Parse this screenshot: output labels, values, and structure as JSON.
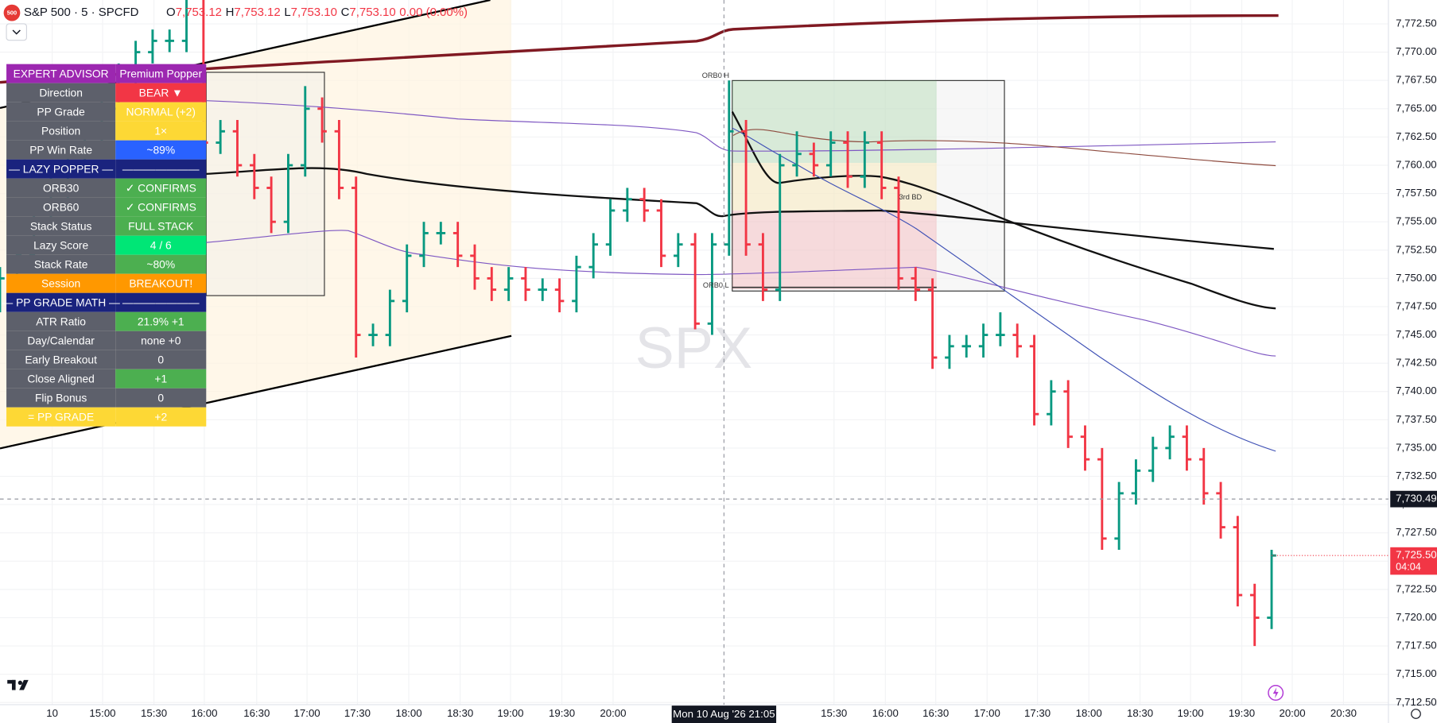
{
  "header": {
    "badge": "500",
    "symbol": "S&P 500 · 5 · SPCFD",
    "ohlc": [
      {
        "key": "O",
        "value": "7,753.12"
      },
      {
        "key": "H",
        "value": "7,753.12"
      },
      {
        "key": "L",
        "value": "7,753.10"
      },
      {
        "key": "C",
        "value": "7,753.10"
      }
    ],
    "change": "0.00 (0.00%)"
  },
  "chart_data": {
    "type": "ohlc",
    "watermark": "SPX",
    "up_color": "#089981",
    "down_color": "#f23645",
    "x": [
      0,
      1,
      2,
      3,
      4,
      5,
      6,
      7,
      8,
      9,
      10,
      11,
      12,
      13,
      14,
      15,
      16,
      17,
      18,
      19,
      20,
      21,
      22,
      23,
      24,
      25,
      26,
      27,
      28,
      29,
      30,
      31,
      32,
      33,
      34,
      35,
      36,
      37,
      38,
      39,
      40,
      41,
      42,
      43,
      44,
      45,
      46,
      47,
      48,
      49,
      50,
      51,
      52,
      53,
      54,
      55,
      56,
      57,
      58,
      59,
      60,
      61,
      62,
      63,
      64,
      65,
      66,
      67,
      68,
      69,
      70,
      71,
      72,
      73,
      74,
      75
    ],
    "open": [
      7748,
      7750,
      7752,
      7755,
      7758,
      7760,
      7762,
      7765,
      7768,
      7770,
      7771,
      7771,
      7775,
      7762,
      7763,
      7760,
      7758,
      7755,
      7760,
      7765,
      7763,
      7758,
      7745,
      7745,
      7748,
      7752,
      7754,
      7754,
      7752,
      7750,
      7749,
      7750,
      7749,
      7749,
      7748,
      7751,
      7753,
      7756,
      7757,
      7756,
      7752,
      7753,
      7746,
      7753,
      7763,
      7753,
      7749,
      7760,
      7761,
      7760,
      7762,
      7759,
      7762,
      7758,
      7750,
      7749,
      7743,
      7744,
      7744,
      7745,
      7745,
      7744,
      7738,
      7740,
      7736,
      7734,
      7727,
      7731,
      7733,
      7735,
      7736,
      7734,
      7731,
      7728,
      7722,
      7720
    ],
    "high": [
      7751,
      7753,
      7756,
      7759,
      7761,
      7763,
      7766,
      7769,
      7771,
      7772,
      7772,
      7777,
      7776,
      7764,
      7764,
      7761,
      7759,
      7761,
      7767,
      7766,
      7764,
      7759,
      7746,
      7749,
      7753,
      7755,
      7755,
      7755,
      7753,
      7751,
      7751,
      7751,
      7750,
      7750,
      7752,
      7754,
      7757,
      7758,
      7758,
      7757,
      7754,
      7754,
      7754,
      7767.5,
      7764,
      7754,
      7761,
      7763,
      7762,
      7763,
      7763,
      7763,
      7763,
      7759,
      7751,
      7750,
      7745,
      7745,
      7746,
      7747,
      7746,
      7745,
      7741,
      7741,
      7737,
      7735,
      7732,
      7734,
      7736,
      7737,
      7737,
      7735,
      7732,
      7729,
      7723,
      7726
    ],
    "low": [
      7747,
      7749,
      7751,
      7754,
      7757,
      7759,
      7761,
      7764,
      7767,
      7769,
      7770,
      7770,
      7761,
      7761,
      7759,
      7757,
      7754,
      7754,
      7759,
      7762,
      7757,
      7743,
      7744,
      7744,
      7747,
      7751,
      7753,
      7751,
      7749,
      7748,
      7748,
      7748,
      7748,
      7747,
      7747,
      7750,
      7752,
      7755,
      7755,
      7751,
      7751,
      7745.5,
      7745,
      7752,
      7752,
      7748,
      7748,
      7759,
      7759,
      7759,
      7758,
      7758,
      7757,
      7749,
      7748,
      7742,
      7742,
      7743,
      7743,
      7744,
      7743,
      7737,
      7737,
      7735,
      7733,
      7726,
      7726,
      7730,
      7732,
      7734,
      7733,
      7730,
      7727,
      7721,
      7717.5,
      7719
    ],
    "close": [
      7750,
      7752,
      7755,
      7758,
      7760,
      7762,
      7765,
      7768,
      7770,
      7771,
      7771,
      7775,
      7762,
      7763,
      7760,
      7758,
      7755,
      7760,
      7765,
      7763,
      7758,
      7745,
      7745,
      7748,
      7752,
      7754,
      7754,
      7752,
      7750,
      7749,
      7750,
      7749,
      7749,
      7748,
      7751,
      7753,
      7756,
      7757,
      7756,
      7752,
      7753,
      7746,
      7753,
      7763,
      7753,
      7749,
      7760,
      7761,
      7760,
      7762,
      7759,
      7762,
      7758,
      7750,
      7749,
      7743,
      7744,
      7744,
      7745,
      7745,
      7744,
      7738,
      7740,
      7736,
      7734,
      7727,
      7731,
      7733,
      7735,
      7736,
      7734,
      7731,
      7728,
      7722,
      7720,
      7725.5
    ],
    "xlim": [
      0,
      81.89
    ],
    "ylim": [
      7712.31,
      7774.61
    ],
    "xticks": [
      {
        "value": 3.08,
        "label": "10"
      },
      {
        "value": 6.05,
        "label": "15:00"
      },
      {
        "value": 9.08,
        "label": "15:30"
      },
      {
        "value": 12.05,
        "label": "16:00"
      },
      {
        "value": 15.14,
        "label": "16:30"
      },
      {
        "value": 18.11,
        "label": "17:00"
      },
      {
        "value": 21.08,
        "label": "17:30"
      },
      {
        "value": 24.11,
        "label": "18:00"
      },
      {
        "value": 27.14,
        "label": "18:30"
      },
      {
        "value": 30.11,
        "label": "19:00"
      },
      {
        "value": 33.14,
        "label": "19:30"
      },
      {
        "value": 36.16,
        "label": "20:00"
      },
      {
        "value": 49.19,
        "label": "15:30"
      },
      {
        "value": 52.22,
        "label": "16:00"
      },
      {
        "value": 55.19,
        "label": "16:30"
      },
      {
        "value": 58.22,
        "label": "17:00"
      },
      {
        "value": 61.19,
        "label": "17:30"
      },
      {
        "value": 64.22,
        "label": "18:00"
      },
      {
        "value": 67.24,
        "label": "18:30"
      },
      {
        "value": 70.22,
        "label": "19:00"
      },
      {
        "value": 73.24,
        "label": "19:30"
      },
      {
        "value": 76.22,
        "label": "20:00"
      },
      {
        "value": 79.24,
        "label": "20:30"
      }
    ],
    "yticks": [
      {
        "value": 7712.5,
        "label": "7,712.50"
      },
      {
        "value": 7715,
        "label": "7,715.00"
      },
      {
        "value": 7717.5,
        "label": "7,717.50"
      },
      {
        "value": 7720,
        "label": "7,720.00"
      },
      {
        "value": 7722.5,
        "label": "7,722.50"
      },
      {
        "value": 7725,
        "label": "7,725.00"
      },
      {
        "value": 7727.5,
        "label": "7,727.50"
      },
      {
        "value": 7730,
        "label": "7,730.00"
      },
      {
        "value": 7732.5,
        "label": "7,732.50"
      },
      {
        "value": 7735,
        "label": "7,735.00"
      },
      {
        "value": 7737.5,
        "label": "7,737.50"
      },
      {
        "value": 7740,
        "label": "7,740.00"
      },
      {
        "value": 7742.5,
        "label": "7,742.50"
      },
      {
        "value": 7745,
        "label": "7,745.00"
      },
      {
        "value": 7747.5,
        "label": "7,747.50"
      },
      {
        "value": 7750,
        "label": "7,750.00"
      },
      {
        "value": 7752.5,
        "label": "7,752.50"
      },
      {
        "value": 7755,
        "label": "7,755.00"
      },
      {
        "value": 7757.5,
        "label": "7,757.50"
      },
      {
        "value": 7760,
        "label": "7,760.00"
      },
      {
        "value": 7762.5,
        "label": "7,762.50"
      },
      {
        "value": 7765,
        "label": "7,765.00"
      },
      {
        "value": 7767.5,
        "label": "7,767.50"
      },
      {
        "value": 7770,
        "label": "7,770.00"
      },
      {
        "value": 7772.5,
        "label": "7,772.50"
      }
    ],
    "crosshair": {
      "x": 42.7,
      "time": "Mon 10 Aug '26  21:05",
      "price": {
        "value": 7730.49,
        "label": "7,730.49"
      }
    },
    "last_price": {
      "value": 7725.5,
      "label": "7,725.50",
      "countdown": "04:04"
    },
    "annotations": [
      "ORB0 H",
      "ORB0 L",
      "3rd BD"
    ]
  },
  "panel": {
    "rows": [
      [
        "EXPERT ADVISOR",
        "Premium Popper"
      ],
      [
        "Direction",
        "BEAR ▼"
      ],
      [
        "PP Grade",
        "NORMAL (+2)"
      ],
      [
        "Position",
        "1×"
      ],
      [
        "PP Win Rate",
        "~89%"
      ],
      [
        "— LAZY POPPER —",
        "———————"
      ],
      [
        "ORB30",
        "✓ CONFIRMS"
      ],
      [
        "ORB60",
        "✓ CONFIRMS"
      ],
      [
        "Stack Status",
        "FULL STACK"
      ],
      [
        "Lazy Score",
        "4 / 6"
      ],
      [
        "Stack Rate",
        "~80%"
      ],
      [
        "Session",
        "BREAKOUT!"
      ],
      [
        "— PP GRADE MATH —",
        "———————"
      ],
      [
        "ATR Ratio",
        "21.9% +1"
      ],
      [
        "Day/Calendar",
        "none +0"
      ],
      [
        "Early Breakout",
        "0"
      ],
      [
        "Close Aligned",
        "+1"
      ],
      [
        "Flip Bonus",
        "0"
      ],
      [
        "= PP GRADE",
        "+2"
      ]
    ]
  }
}
